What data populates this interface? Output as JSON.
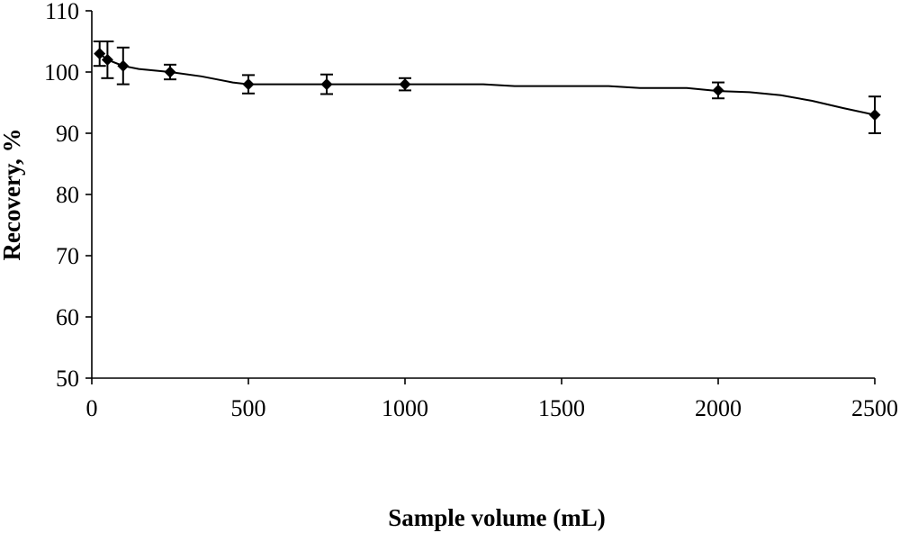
{
  "chart_data": {
    "type": "scatter",
    "title": "",
    "xlabel": "Sample volume (mL)",
    "ylabel": "Recovery, %",
    "xlim": [
      0,
      2500
    ],
    "ylim": [
      50,
      110
    ],
    "xticks": [
      0,
      500,
      1000,
      1500,
      2000,
      2500
    ],
    "yticks": [
      50,
      60,
      70,
      80,
      90,
      100,
      110
    ],
    "grid": false,
    "legend": "none",
    "series": [
      {
        "x": [
          25,
          50,
          100,
          250,
          500,
          750,
          1000,
          2000,
          2500
        ],
        "y": [
          103,
          102,
          101,
          100,
          98,
          98,
          98,
          97,
          93
        ],
        "error": [
          2.0,
          3.0,
          3.0,
          1.2,
          1.5,
          1.6,
          1.0,
          1.3,
          3.0
        ]
      }
    ],
    "trend_line": {
      "x": [
        25,
        50,
        100,
        150,
        250,
        350,
        450,
        500,
        750,
        1000,
        1250,
        1350,
        1500,
        1650,
        1750,
        1900,
        2000,
        2100,
        2200,
        2300,
        2400,
        2500
      ],
      "y": [
        103,
        102,
        101,
        100.5,
        100,
        99.3,
        98.3,
        98,
        98,
        98,
        98,
        97.7,
        97.7,
        97.7,
        97.4,
        97.4,
        96.9,
        96.7,
        96.2,
        95.3,
        94.1,
        93
      ]
    }
  }
}
